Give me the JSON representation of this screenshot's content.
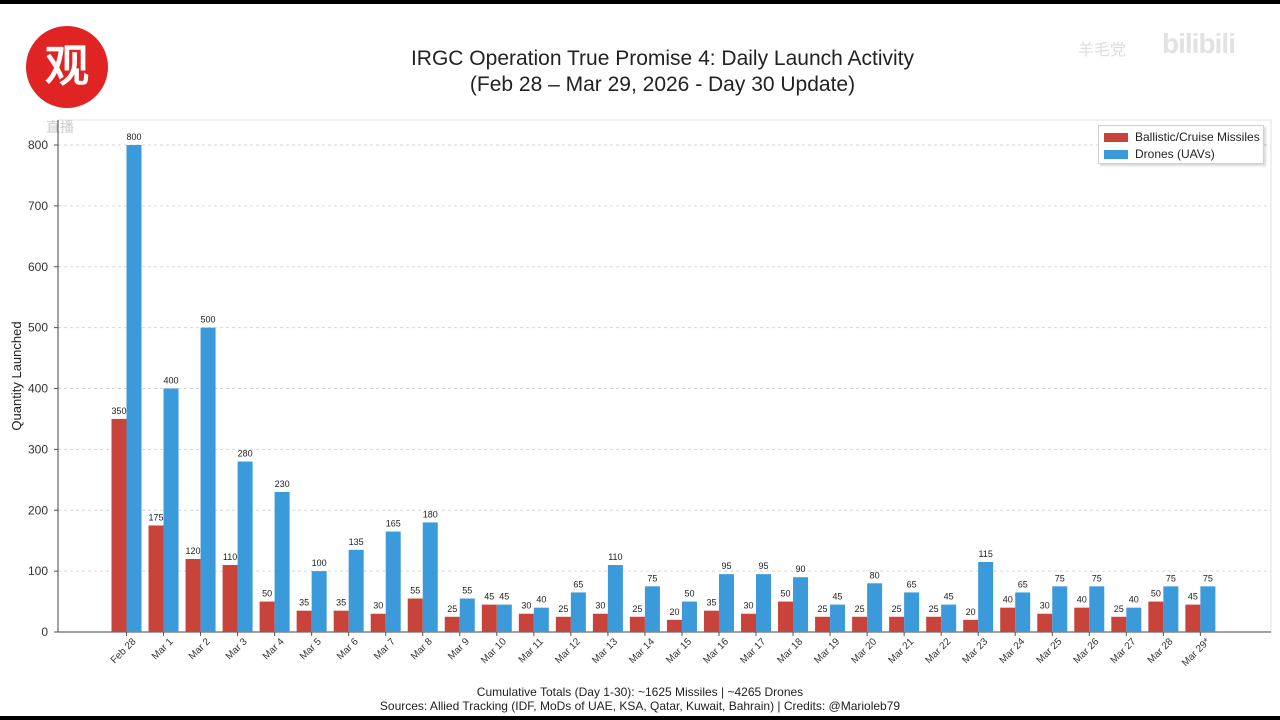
{
  "logo": {
    "glyph": "观",
    "sub": "直播"
  },
  "watermarks": {
    "w1": "羊毛党",
    "w2": "bilibili"
  },
  "chart_data": {
    "type": "bar",
    "title_line1": "IRGC Operation True Promise 4: Daily Launch Activity",
    "title_line2": "(Feb 28 – Mar 29, 2026 - Day 30 Update)",
    "xlabel": "",
    "ylabel": "Quantity Launched",
    "ylim": [
      0,
      840
    ],
    "yticks": [
      0,
      100,
      200,
      300,
      400,
      500,
      600,
      700,
      800
    ],
    "grid": true,
    "legend_placement": "top-right",
    "categories": [
      "Feb 28",
      "Mar 1",
      "Mar 2",
      "Mar 3",
      "Mar 4",
      "Mar 5",
      "Mar 6",
      "Mar 7",
      "Mar 8",
      "Mar 9",
      "Mar 10",
      "Mar 11",
      "Mar 12",
      "Mar 13",
      "Mar 14",
      "Mar 15",
      "Mar 16",
      "Mar 17",
      "Mar 18",
      "Mar 19",
      "Mar 20",
      "Mar 21",
      "Mar 22",
      "Mar 23",
      "Mar 24",
      "Mar 25",
      "Mar 26",
      "Mar 27",
      "Mar 28",
      "Mar 29*"
    ],
    "series": [
      {
        "name": "Ballistic/Cruise Missiles",
        "color": "#c8443b",
        "values": [
          350,
          175,
          120,
          110,
          50,
          35,
          35,
          30,
          55,
          25,
          45,
          30,
          25,
          30,
          25,
          20,
          35,
          30,
          50,
          25,
          25,
          25,
          25,
          20,
          40,
          30,
          40,
          25,
          50,
          45
        ]
      },
      {
        "name": "Drones (UAVs)",
        "color": "#3b9ad9",
        "values": [
          800,
          400,
          500,
          280,
          230,
          100,
          135,
          165,
          180,
          55,
          45,
          40,
          65,
          110,
          75,
          50,
          95,
          95,
          90,
          45,
          80,
          65,
          45,
          115,
          65,
          75,
          75,
          40,
          75,
          75
        ]
      }
    ],
    "footer_line1": "Cumulative Totals (Day 1-30): ~1625 Missiles | ~4265 Drones",
    "footer_line2": "Sources: Allied Tracking (IDF, MoDs of UAE, KSA, Qatar, Kuwait, Bahrain) | Credits: @Marioleb79"
  }
}
